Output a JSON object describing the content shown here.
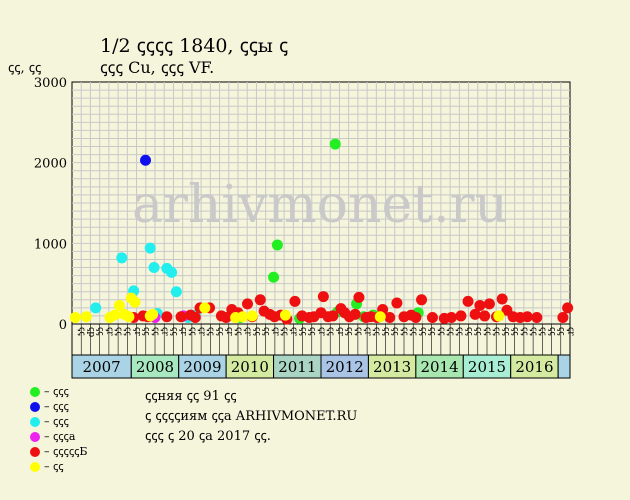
{
  "title_line1": "1/2 ꞔꞔꞔꞔ 1840, ꞔꞔы ꞔ",
  "title_line2": "ꞔꞔꞔ Cu, ꞔꞔꞔ VF.",
  "y_unit_label": "ꞔꞔ, ꞔꞔ",
  "watermark": "arhivmonet.ru",
  "legend": [
    {
      "color": "#22ee22",
      "label": "– ꞔꞔꞔ"
    },
    {
      "color": "#1010ee",
      "label": "– ꞔꞔꞔ"
    },
    {
      "color": "#22eeee",
      "label": "– ꞔꞔꞔ"
    },
    {
      "color": "#ee22ee",
      "label": "– ꞔꞔꞔa"
    },
    {
      "color": "#ee1010",
      "label": "– ꞔꞔꞔꞔꞔБ"
    },
    {
      "color": "#ffff00",
      "label": "– ꞔꞔ"
    }
  ],
  "info_lines": [
    "ꞔꞔняя ꞔꞔ 91 ꞔꞔ",
    "ꞔ ꞔꞔꞔꞔиям ꞔꞔa ARHIVMONET.RU",
    "ꞔꞔꞔ ꞔ 20 ꞔa 2017 ꞔꞔ."
  ],
  "chart_data": {
    "type": "scatter",
    "ylim": [
      0,
      3000
    ],
    "yticks": [
      0,
      1000,
      2000,
      3000
    ],
    "grid": true,
    "x_month_labels": [
      "ꞔꞔ",
      "ꞔр",
      "ꞔꞔ",
      "ꞔr",
      "ꞔꞔ",
      "ꞔꞔ",
      "ꞔr",
      "ꞔꞔ",
      "ꞔꞔ",
      "ꞔr",
      "ꞔꞔ",
      "ꞔr",
      "ꞔꞔ",
      "ꞔr",
      "ꞔꞔ",
      "ꞔꞔ",
      "ꞔr",
      "ꞔꞔ",
      "ꞔr",
      "ꞔꞔ",
      "ꞔꞔ",
      "ꞔr",
      "ꞔꞔ",
      "ꞔr",
      "ꞔꞔ",
      "ꞔꞔ",
      "ꞔr",
      "ꞔꞔ",
      "ꞔr",
      "ꞔꞔ",
      "ꞔꞔ",
      "ꞔr",
      "ꞔꞔ",
      "ꞔꞔ",
      "ꞔꞔ",
      "ꞔꞔ",
      "ꞔꞔ",
      "ꞔꞔ",
      "ꞔꞔ",
      "ꞔꞔ",
      "ꞔꞔ",
      "ꞔꞔ",
      "ꞔꞔ",
      "ꞔꞔ",
      "ꞔꞔ",
      "ꞔꞔ",
      "ꞔꞔ",
      "ꞔꞔ",
      "ꞔꞔ",
      "ꞔꞔ",
      "ꞔꞔ",
      "ꞔꞔ",
      "ꞔꞔ",
      "ꞔr"
    ],
    "x_start": 2006.75,
    "x_end": 2017.25,
    "years": [
      {
        "label": "2007",
        "start": 2006.75,
        "end": 2008.0,
        "color": "#aad4e6"
      },
      {
        "label": "2008",
        "start": 2008.0,
        "end": 2009.0,
        "color": "#a8e8c0"
      },
      {
        "label": "2009",
        "start": 2009.0,
        "end": 2010.0,
        "color": "#aad4e6"
      },
      {
        "label": "2010",
        "start": 2010.0,
        "end": 2011.0,
        "color": "#d4eaa0"
      },
      {
        "label": "2011",
        "start": 2011.0,
        "end": 2012.0,
        "color": "#aad4c4"
      },
      {
        "label": "2012",
        "start": 2012.0,
        "end": 2013.0,
        "color": "#aac4e6"
      },
      {
        "label": "2013",
        "start": 2013.0,
        "end": 2014.0,
        "color": "#d4eaa0"
      },
      {
        "label": "2014",
        "start": 2014.0,
        "end": 2015.0,
        "color": "#a8e8b0"
      },
      {
        "label": "2015",
        "start": 2015.0,
        "end": 2016.0,
        "color": "#a8eed4"
      },
      {
        "label": "2016",
        "start": 2016.0,
        "end": 2017.0,
        "color": "#d4eaa0"
      },
      {
        "label": "",
        "start": 2017.0,
        "end": 2017.25,
        "color": "#aad4e6"
      }
    ],
    "series": [
      {
        "name": "green",
        "color": "#22ee22",
        "points": [
          [
            2010.3,
            80
          ],
          [
            2011.0,
            580
          ],
          [
            2011.08,
            980
          ],
          [
            2011.55,
            70
          ],
          [
            2012.3,
            2230
          ],
          [
            2012.35,
            150
          ],
          [
            2012.75,
            250
          ],
          [
            2012.9,
            90
          ],
          [
            2013.1,
            110
          ],
          [
            2014.05,
            140
          ]
        ]
      },
      {
        "name": "blue",
        "color": "#1010ee",
        "points": [
          [
            2008.3,
            2030
          ]
        ]
      },
      {
        "name": "cyan",
        "color": "#22eeee",
        "points": [
          [
            2007.25,
            200
          ],
          [
            2007.8,
            820
          ],
          [
            2008.05,
            410
          ],
          [
            2008.4,
            940
          ],
          [
            2008.48,
            700
          ],
          [
            2008.55,
            130
          ],
          [
            2008.75,
            690
          ],
          [
            2008.85,
            640
          ],
          [
            2008.95,
            400
          ],
          [
            2009.35,
            110
          ],
          [
            2009.2,
            80
          ]
        ]
      },
      {
        "name": "magenta",
        "color": "#ee22ee",
        "points": [
          [
            2008.5,
            80
          ],
          [
            2009.1,
            100
          ]
        ]
      },
      {
        "name": "red",
        "color": "#ee1010",
        "points": [
          [
            2008.05,
            80
          ],
          [
            2008.25,
            100
          ],
          [
            2008.35,
            90
          ],
          [
            2008.75,
            90
          ],
          [
            2009.05,
            90
          ],
          [
            2009.25,
            110
          ],
          [
            2009.35,
            80
          ],
          [
            2009.45,
            200
          ],
          [
            2009.65,
            200
          ],
          [
            2009.9,
            100
          ],
          [
            2010.0,
            80
          ],
          [
            2010.12,
            180
          ],
          [
            2010.25,
            140
          ],
          [
            2010.45,
            250
          ],
          [
            2010.55,
            90
          ],
          [
            2010.72,
            300
          ],
          [
            2010.8,
            160
          ],
          [
            2010.92,
            120
          ],
          [
            2011.02,
            90
          ],
          [
            2011.15,
            110
          ],
          [
            2011.28,
            60
          ],
          [
            2011.45,
            280
          ],
          [
            2011.6,
            100
          ],
          [
            2011.75,
            80
          ],
          [
            2011.85,
            90
          ],
          [
            2012.0,
            140
          ],
          [
            2012.05,
            340
          ],
          [
            2012.15,
            90
          ],
          [
            2012.25,
            100
          ],
          [
            2012.42,
            190
          ],
          [
            2012.5,
            140
          ],
          [
            2012.6,
            90
          ],
          [
            2012.72,
            120
          ],
          [
            2012.8,
            330
          ],
          [
            2012.95,
            80
          ],
          [
            2013.05,
            90
          ],
          [
            2013.18,
            80
          ],
          [
            2013.3,
            180
          ],
          [
            2013.45,
            80
          ],
          [
            2013.6,
            260
          ],
          [
            2013.75,
            90
          ],
          [
            2013.9,
            110
          ],
          [
            2014.0,
            80
          ],
          [
            2014.12,
            300
          ],
          [
            2014.35,
            80
          ],
          [
            2014.6,
            70
          ],
          [
            2014.75,
            80
          ],
          [
            2014.95,
            100
          ],
          [
            2015.1,
            280
          ],
          [
            2015.25,
            120
          ],
          [
            2015.35,
            230
          ],
          [
            2015.45,
            100
          ],
          [
            2015.55,
            250
          ],
          [
            2015.7,
            90
          ],
          [
            2015.82,
            310
          ],
          [
            2015.92,
            170
          ],
          [
            2016.05,
            90
          ],
          [
            2016.2,
            80
          ],
          [
            2016.35,
            90
          ],
          [
            2016.55,
            80
          ],
          [
            2017.1,
            80
          ],
          [
            2017.2,
            200
          ]
        ]
      },
      {
        "name": "yellow",
        "color": "#ffff00",
        "points": [
          [
            2006.82,
            80
          ],
          [
            2007.05,
            90
          ],
          [
            2007.55,
            80
          ],
          [
            2007.65,
            110
          ],
          [
            2007.75,
            230
          ],
          [
            2007.85,
            120
          ],
          [
            2007.95,
            90
          ],
          [
            2008.0,
            320
          ],
          [
            2008.08,
            270
          ],
          [
            2008.4,
            100
          ],
          [
            2008.45,
            120
          ],
          [
            2009.55,
            200
          ],
          [
            2010.2,
            80
          ],
          [
            2010.35,
            90
          ],
          [
            2010.55,
            100
          ],
          [
            2011.25,
            110
          ],
          [
            2013.25,
            90
          ],
          [
            2015.75,
            100
          ]
        ]
      }
    ]
  }
}
